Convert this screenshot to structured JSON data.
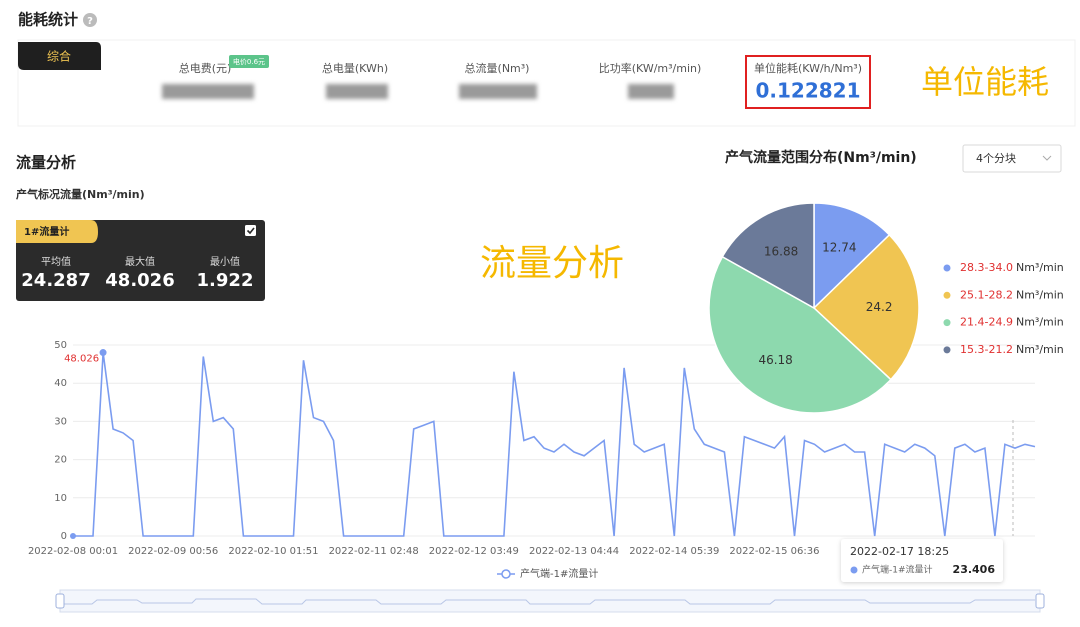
{
  "header": {
    "title": "能耗统计"
  },
  "summary": {
    "tab": "综合",
    "metrics": [
      {
        "label": "总电费(元)",
        "badge": "电价0.6元"
      },
      {
        "label": "总电量(KWh)"
      },
      {
        "label": "总流量(Nm³)"
      },
      {
        "label": "比功率(KW/m³/min)"
      },
      {
        "label": "单位能耗(KW/h/Nm³)",
        "value": 0.122821
      }
    ]
  },
  "annotations": [
    "单位能耗",
    "流量分析"
  ],
  "flow": {
    "title": "流量分析",
    "panel": {
      "tag": "1#流量计",
      "stats": [
        {
          "label": "平均值",
          "value": 24.287
        },
        {
          "label": "最大值",
          "value": 48.026
        },
        {
          "label": "最小值",
          "value": 1.922
        }
      ]
    },
    "dropdown": "4个分块"
  },
  "tooltip": {
    "title": "2022-02-17 18:25"
  },
  "chart_data": [
    {
      "type": "line",
      "y_label": "产气标况流量(Nm³/min)",
      "categories": [
        "2022-02-08 00:01",
        null,
        null,
        null,
        null,
        null,
        null,
        null,
        null,
        null,
        "2022-02-09 00:56",
        null,
        null,
        null,
        null,
        null,
        null,
        null,
        null,
        null,
        "2022-02-10 01:51",
        null,
        null,
        null,
        null,
        null,
        null,
        null,
        null,
        null,
        "2022-02-11 02:48",
        null,
        null,
        null,
        null,
        null,
        null,
        null,
        null,
        null,
        "2022-02-12 03:49",
        null,
        null,
        null,
        null,
        null,
        null,
        null,
        null,
        null,
        "2022-02-13 04:44",
        null,
        null,
        null,
        null,
        null,
        null,
        null,
        null,
        null,
        "2022-02-14 05:39",
        null,
        null,
        null,
        null,
        null,
        null,
        null,
        null,
        null,
        "2022-02-15 06:36",
        null,
        null,
        null,
        null,
        null,
        null,
        null,
        null,
        null,
        null,
        null,
        null,
        null,
        null,
        null,
        null,
        null,
        null,
        null,
        null,
        null,
        null,
        null,
        null,
        null,
        null
      ],
      "series": [
        {
          "name": "产气端-1#流量计",
          "color": "#7b9cf0",
          "values": [
            0,
            0,
            0,
            48.026,
            28,
            27,
            25,
            0,
            0,
            0,
            0,
            0,
            0,
            47,
            30,
            31,
            28,
            0,
            0,
            0,
            0,
            0,
            0,
            46,
            31,
            30,
            25,
            0,
            0,
            0,
            0,
            0,
            0,
            0,
            28,
            29,
            30,
            0,
            0,
            0,
            0,
            0,
            0,
            0,
            43,
            25,
            26,
            23,
            22,
            24,
            22,
            21,
            23,
            25,
            0,
            44,
            24,
            22,
            23,
            24,
            0,
            44,
            28,
            24,
            23,
            22,
            0,
            26,
            25,
            24,
            23,
            26,
            0,
            25,
            24,
            22,
            23,
            24,
            22,
            22,
            0,
            24,
            23,
            22,
            24,
            23,
            21,
            0,
            23,
            24,
            22,
            23,
            0,
            24,
            23,
            24,
            23.406
          ]
        }
      ],
      "ylim": [
        0,
        50
      ],
      "yticks": [
        0,
        10,
        20,
        30,
        40,
        50
      ],
      "grid": true
    },
    {
      "type": "pie",
      "title": "产气流量范围分布(Nm³/min)",
      "categories": [
        "28.3-34.0",
        "25.1-28.2",
        "21.4-24.9",
        "15.3-21.2"
      ],
      "unit": "Nm³/min",
      "values": [
        12.74,
        24.2,
        46.18,
        16.88
      ],
      "colors": [
        "#7b9cf0",
        "#f0c552",
        "#8dd9ae",
        "#6b7a99"
      ]
    }
  ]
}
